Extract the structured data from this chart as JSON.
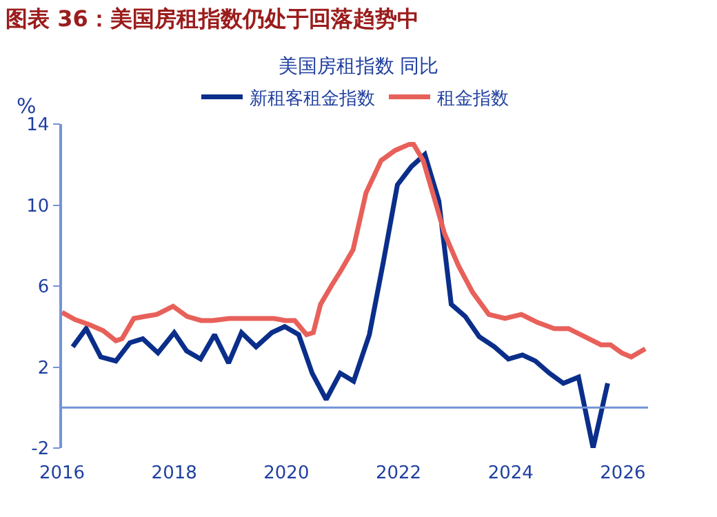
{
  "chart_data": {
    "type": "line",
    "title": "图表 36：美国房租指数仍处于回落趋势中",
    "subtitle": "美国房租指数 同比",
    "ylabel": "%",
    "series": [
      {
        "name": "新租客租金指数",
        "color": "#0a2e8a",
        "x": [
          2016.19,
          2016.43,
          2016.69,
          2016.96,
          2017.21,
          2017.44,
          2017.71,
          2018.0,
          2018.22,
          2018.47,
          2018.72,
          2018.97,
          2019.2,
          2019.46,
          2019.74,
          2019.97,
          2020.22,
          2020.46,
          2020.71,
          2020.96,
          2021.2,
          2021.48,
          2021.73,
          2021.98,
          2022.23,
          2022.47,
          2022.72,
          2022.94,
          2023.19,
          2023.44,
          2023.71,
          2023.96,
          2024.21,
          2024.44,
          2024.69,
          2024.94,
          2025.21,
          2025.47,
          2025.73
        ],
        "values": [
          3.0,
          3.9,
          2.5,
          2.3,
          3.2,
          3.4,
          2.7,
          3.7,
          2.8,
          2.4,
          3.6,
          2.2,
          3.7,
          3.0,
          3.7,
          4.0,
          3.6,
          1.7,
          0.4,
          1.7,
          1.3,
          3.6,
          7.2,
          11.0,
          11.9,
          12.5,
          10.2,
          5.1,
          4.5,
          3.5,
          3.0,
          2.4,
          2.6,
          2.3,
          1.7,
          1.2,
          1.5,
          -2.0,
          1.2
        ]
      },
      {
        "name": "租金指数",
        "color": "#e8605a",
        "x": [
          2016.0,
          2016.23,
          2016.48,
          2016.73,
          2016.96,
          2017.07,
          2017.28,
          2017.48,
          2017.69,
          2017.98,
          2018.23,
          2018.48,
          2018.69,
          2018.98,
          2019.28,
          2019.48,
          2019.78,
          2019.98,
          2020.15,
          2020.36,
          2020.48,
          2020.61,
          2020.8,
          2020.98,
          2021.19,
          2021.42,
          2021.69,
          2021.94,
          2022.19,
          2022.27,
          2022.44,
          2022.61,
          2022.82,
          2023.07,
          2023.32,
          2023.61,
          2023.9,
          2024.19,
          2024.48,
          2024.78,
          2025.03,
          2025.32,
          2025.61,
          2025.78,
          2025.98,
          2026.15,
          2026.4
        ],
        "values": [
          4.7,
          4.35,
          4.1,
          3.8,
          3.3,
          3.4,
          4.4,
          4.5,
          4.6,
          5.0,
          4.5,
          4.3,
          4.3,
          4.4,
          4.4,
          4.4,
          4.4,
          4.3,
          4.3,
          3.6,
          3.7,
          5.1,
          6.0,
          6.8,
          7.8,
          10.6,
          12.2,
          12.7,
          13.0,
          13.0,
          12.2,
          10.6,
          8.6,
          7.0,
          5.7,
          4.6,
          4.4,
          4.6,
          4.2,
          3.9,
          3.9,
          3.5,
          3.1,
          3.1,
          2.7,
          2.5,
          2.9
        ]
      }
    ],
    "xlim": [
      2016,
      2026.45
    ],
    "xticks": [
      2016,
      2018,
      2020,
      2022,
      2024,
      2026
    ],
    "ylim": [
      -2,
      14
    ],
    "yticks": [
      -2,
      2,
      6,
      10,
      14
    ],
    "ref_lines": [
      {
        "axis": "y",
        "value": 0,
        "color": "#7393d6"
      }
    ],
    "grid": false,
    "legend": "top",
    "marker": "none",
    "line_style": "solid"
  }
}
